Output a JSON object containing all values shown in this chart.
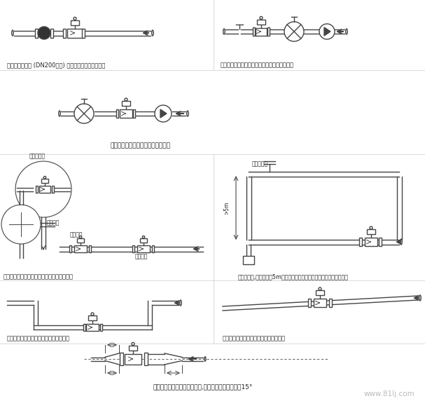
{
  "bg_color": "#ffffff",
  "line_color": "#444444",
  "text_color": "#222222",
  "gray": "#888888",
  "captions": [
    "在大口径流量计 (DN200以上) 安装管线上要加弹性管件",
    "长管线上控制阀和切断阀要安装在流量计的下游",
    "为防止真空，流量计应装在泵的后面",
    "为遣免夹附气体引起测量误差，流量计的安装",
    "为防止真空,落差管超过5m长时要在流量计下流最高位置上装自动排气阀",
    "龁口灌入或排放流量计安装在管道低段区",
    "水平管道流量计安装在稍稍向上的管道区",
    "流量计上下游管道为异径管时,异径管中心锥角应小于15°"
  ],
  "labels": {
    "pipe_high": "管道最高点",
    "down_pipe": "向下管道",
    "best_pos": "最佳位置",
    "ok_pos": "合理位置",
    "auto_vent": "自动排气孔",
    "watermark": "www.81lj.com"
  }
}
